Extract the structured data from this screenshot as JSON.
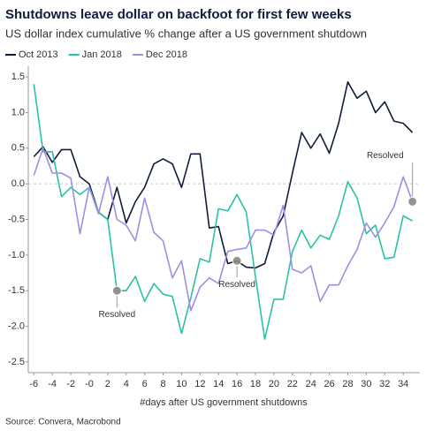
{
  "chart_data": {
    "type": "line",
    "title": "Shutdowns leave dollar on backfoot for first few weeks",
    "subtitle": "US dollar index cumulative % change after a US government shutdown",
    "x_label": "#days after US government shutdowns",
    "source": "Source: Convera, Macrobond",
    "x": [
      -6,
      -5,
      -4,
      -3,
      -2,
      -1,
      0,
      1,
      2,
      3,
      4,
      5,
      6,
      7,
      8,
      9,
      10,
      11,
      12,
      13,
      14,
      15,
      16,
      17,
      18,
      19,
      20,
      21,
      22,
      23,
      24,
      25,
      26,
      27,
      28,
      29,
      30,
      31,
      32,
      33,
      34,
      35
    ],
    "series": [
      {
        "name": "Oct 2013",
        "color": "#0f1d3d",
        "values": [
          0.38,
          0.52,
          0.3,
          0.48,
          0.48,
          0.1,
          0.0,
          -0.4,
          -0.5,
          -0.05,
          -0.55,
          -0.25,
          -0.05,
          0.28,
          0.35,
          0.28,
          -0.05,
          0.42,
          0.42,
          -0.62,
          -0.6,
          -1.12,
          -1.08,
          -1.17,
          -1.18,
          -1.12,
          -0.68,
          -0.45,
          0.15,
          0.72,
          0.5,
          0.7,
          0.43,
          0.85,
          1.43,
          1.2,
          1.3,
          1.0,
          1.15,
          0.88,
          0.85,
          0.72
        ]
      },
      {
        "name": "Jan 2018",
        "color": "#2cc1a5",
        "values": [
          1.4,
          0.45,
          0.45,
          -0.18,
          -0.05,
          -0.15,
          -0.05,
          -0.4,
          -0.5,
          -1.5,
          -1.5,
          -1.3,
          -1.65,
          -1.4,
          -1.55,
          -1.58,
          -2.1,
          -1.6,
          -1.05,
          -1.1,
          -0.35,
          -0.38,
          -0.15,
          -0.4,
          -1.3,
          -2.18,
          -1.62,
          -1.62,
          -0.95,
          -0.65,
          -0.9,
          -0.72,
          -0.78,
          -0.45,
          0.03,
          -0.2,
          -0.7,
          -0.58,
          -1.05,
          -1.03,
          -0.45,
          -0.52
        ]
      },
      {
        "name": "Dec 2018",
        "color": "#9d8fe2",
        "values": [
          0.12,
          0.5,
          0.15,
          0.15,
          0.08,
          -0.7,
          -0.05,
          -0.42,
          0.1,
          -0.5,
          -0.58,
          -0.8,
          -0.2,
          -0.68,
          -0.8,
          -1.32,
          -1.08,
          -1.78,
          -1.45,
          -1.32,
          -1.4,
          -0.95,
          -0.92,
          -0.9,
          -0.65,
          -0.65,
          -0.72,
          -0.3,
          -1.2,
          -1.25,
          -1.15,
          -1.65,
          -1.42,
          -1.42,
          -1.15,
          -0.92,
          -0.55,
          -0.75,
          -0.55,
          -0.32,
          0.1,
          -0.25
        ]
      }
    ],
    "annotations": [
      {
        "text": "Resolved",
        "series": 1,
        "x": 3
      },
      {
        "text": "Resolved",
        "series": 0,
        "x": 16
      },
      {
        "text": "Resolved",
        "series": 2,
        "x": 35
      }
    ],
    "xlim": [
      -6.6,
      35.8
    ],
    "ylim": [
      -2.65,
      1.65
    ],
    "xticks": [
      -6,
      -4,
      -2,
      {
        "value": 0,
        "label": "-0"
      },
      2,
      4,
      6,
      8,
      10,
      12,
      14,
      16,
      18,
      20,
      22,
      24,
      26,
      28,
      30,
      32,
      34
    ],
    "yticks": [
      {
        "value": -2.5,
        "label": "-2.5"
      },
      {
        "value": -2,
        "label": "-2.0"
      },
      -1.5,
      {
        "value": -1,
        "label": "-1.0"
      },
      -0.5,
      {
        "value": 0,
        "label": "0.0"
      },
      0.5,
      {
        "value": 1,
        "label": "1.0"
      },
      1.5
    ],
    "zero_line": true,
    "legend": "top-left"
  }
}
